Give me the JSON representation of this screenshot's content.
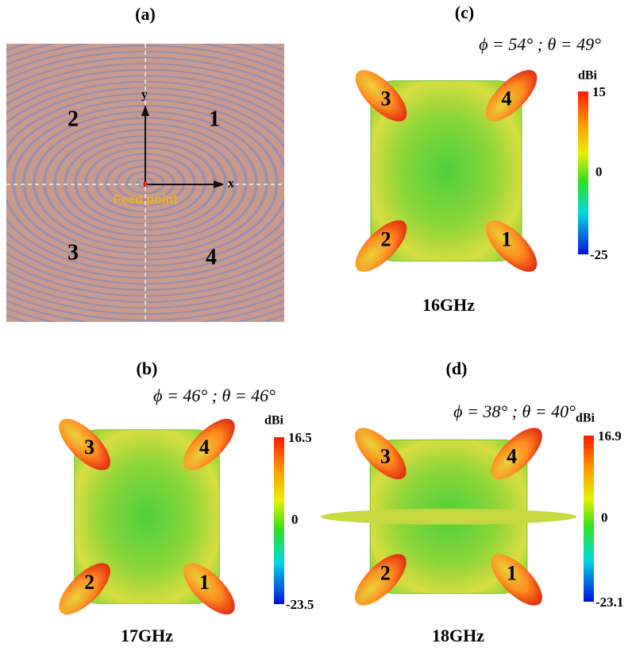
{
  "panel_a": {
    "label": "(a)",
    "axis_y": "y",
    "axis_x": "x",
    "quadrants": [
      "2",
      "1",
      "3",
      "4"
    ],
    "feed_label": "Feed point"
  },
  "panels": [
    {
      "label": "(c)",
      "angles": "ϕ = 54° ; θ = 49°",
      "colorbar": {
        "unit": "dBi",
        "max": "15",
        "mid": "0",
        "min": "-25"
      },
      "lobes": [
        "3",
        "4",
        "2",
        "1"
      ],
      "frequency": "16GHz"
    },
    {
      "label": "(b)",
      "angles": "ϕ = 46° ; θ = 46°",
      "colorbar": {
        "unit": "dBi",
        "max": "16.5",
        "mid": "0",
        "min": "-23.5"
      },
      "lobes": [
        "3",
        "4",
        "2",
        "1"
      ],
      "frequency": "17GHz"
    },
    {
      "label": "(d)",
      "angles": "ϕ = 38° ; θ = 40°",
      "colorbar": {
        "unit": "dBi",
        "max": "16.9",
        "mid": "0",
        "min": "-23.1"
      },
      "lobes": [
        "3",
        "4",
        "2",
        "1"
      ],
      "frequency": "18GHz"
    }
  ]
}
